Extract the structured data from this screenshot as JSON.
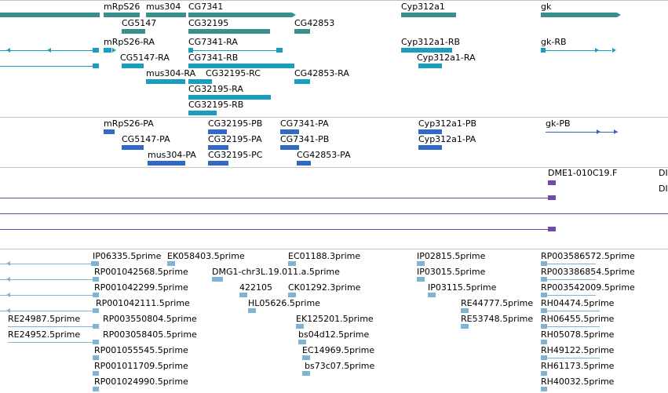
{
  "colors": {
    "gene": "#3a8f8b",
    "transcript": "#199ec1",
    "protein": "#3268c8",
    "clone": "#6f4aa8",
    "est": "#7fb3d3"
  },
  "genes": [
    {
      "label": "mRpS26",
      "color_key": "gene"
    },
    {
      "label": "mus304",
      "color_key": "gene"
    },
    {
      "label": "CG7341",
      "color_key": "gene"
    },
    {
      "label": "Cyp312a1",
      "color_key": "gene"
    },
    {
      "label": "gk",
      "color_key": "gene"
    },
    {
      "label": "CG5147",
      "color_key": "gene"
    },
    {
      "label": "CG32195",
      "color_key": "gene"
    },
    {
      "label": "CG42853",
      "color_key": "gene"
    }
  ],
  "transcripts": [
    {
      "label": "mRpS26-RA"
    },
    {
      "label": "CG7341-RA"
    },
    {
      "label": "Cyp312a1-RB"
    },
    {
      "label": "gk-RB"
    },
    {
      "label": "CG5147-RA"
    },
    {
      "label": "CG7341-RB"
    },
    {
      "label": "Cyp312a1-RA"
    },
    {
      "label": "mus304-RA"
    },
    {
      "label": "CG32195-RC"
    },
    {
      "label": "CG42853-RA"
    },
    {
      "label": "CG32195-RA"
    },
    {
      "label": "CG32195-RB"
    }
  ],
  "proteins": [
    {
      "label": "mRpS26-PA"
    },
    {
      "label": "CG32195-PB"
    },
    {
      "label": "CG7341-PA"
    },
    {
      "label": "Cyp312a1-PB"
    },
    {
      "label": "gk-PB"
    },
    {
      "label": "CG5147-PA"
    },
    {
      "label": "CG32195-PA"
    },
    {
      "label": "CG7341-PB"
    },
    {
      "label": "Cyp312a1-PA"
    },
    {
      "label": "mus304-PA"
    },
    {
      "label": "CG32195-PC"
    },
    {
      "label": "CG42853-PA"
    }
  ],
  "clones": [
    {
      "label": "DME1-010C19.F"
    },
    {
      "label": "DI"
    },
    {
      "label": "DI"
    }
  ],
  "ests": [
    {
      "label": "IP06335.5prime"
    },
    {
      "label": "EK058403.5prime"
    },
    {
      "label": "EC01188.3prime"
    },
    {
      "label": "IP02815.5prime"
    },
    {
      "label": "RP003586572.5prime"
    },
    {
      "label": "RP001042568.5prime"
    },
    {
      "label": "DMG1-chr3L.19.011.a.5prime"
    },
    {
      "label": "IP03015.5prime"
    },
    {
      "label": "RP003386854.5prime"
    },
    {
      "label": "RP001042299.5prime"
    },
    {
      "label": "422105"
    },
    {
      "label": "CK01292.3prime"
    },
    {
      "label": "IP03115.5prime"
    },
    {
      "label": "RP003542009.5prime"
    },
    {
      "label": "RP001042111.5prime"
    },
    {
      "label": "HL05626.5prime"
    },
    {
      "label": "RE44777.5prime"
    },
    {
      "label": "RH04474.5prime"
    },
    {
      "label": "RE24987.5prime"
    },
    {
      "label": "RP003550804.5prime"
    },
    {
      "label": "EK125201.5prime"
    },
    {
      "label": "RE53748.5prime"
    },
    {
      "label": "RH06455.5prime"
    },
    {
      "label": "RE24952.5prime"
    },
    {
      "label": "RP003058405.5prime"
    },
    {
      "label": "bs04d12.5prime"
    },
    {
      "label": "RH05078.5prime"
    },
    {
      "label": "RP001055545.5prime"
    },
    {
      "label": "EC14969.5prime"
    },
    {
      "label": "RH49122.5prime"
    },
    {
      "label": "RP001011709.5prime"
    },
    {
      "label": "bs73c07.5prime"
    },
    {
      "label": "RH61173.5prime"
    },
    {
      "label": "RP001024990.5prime"
    },
    {
      "label": "RH40032.5prime"
    }
  ]
}
